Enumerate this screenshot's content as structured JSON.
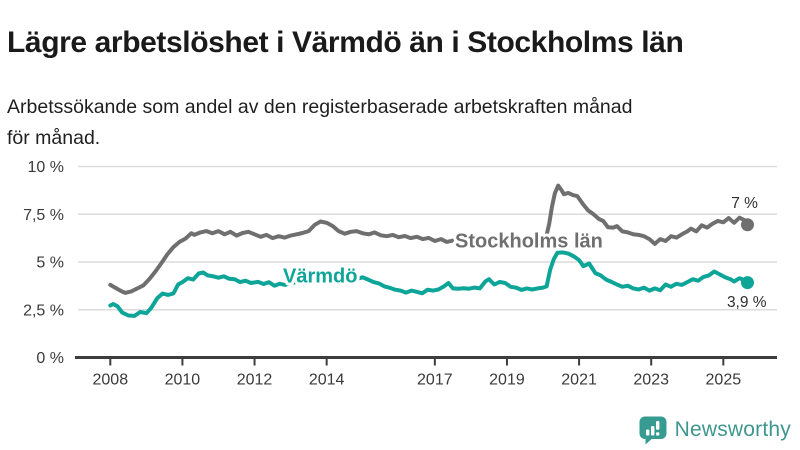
{
  "header": {
    "title": "Lägre arbetslöshet i Värmdö än i Stockholms län",
    "subtitle": "Arbetssökande som andel av den registerbaserade arbetskraften månad\nför månad."
  },
  "chart_data": {
    "type": "line",
    "title": "Lägre arbetslöshet i Värmdö än i Stockholms län",
    "xlabel": "",
    "ylabel": "",
    "x_unit": "decimal-year (monthly data)",
    "xlim": [
      2007.7,
      2026.3
    ],
    "ylim": [
      0,
      10
    ],
    "grid": "horizontal",
    "legend_position": "inline-labels-on-lines",
    "y_ticks": [
      {
        "value": 10,
        "label": "10 %"
      },
      {
        "value": 7.5,
        "label": "7,5 %"
      },
      {
        "value": 5,
        "label": "5 %"
      },
      {
        "value": 2.5,
        "label": "2,5 %"
      },
      {
        "value": 0,
        "label": "0 %"
      }
    ],
    "x_ticks": [
      {
        "value": 2008,
        "label": "2008"
      },
      {
        "value": 2010,
        "label": "2010"
      },
      {
        "value": 2012,
        "label": "2012"
      },
      {
        "value": 2014,
        "label": "2014"
      },
      {
        "value": 2017,
        "label": "2017"
      },
      {
        "value": 2019,
        "label": "2019"
      },
      {
        "value": 2021,
        "label": "2021"
      },
      {
        "value": 2023,
        "label": "2023"
      },
      {
        "value": 2025,
        "label": "2025"
      }
    ],
    "series": [
      {
        "name": "Stockholms län",
        "color": "#6f6f6f",
        "label_anchor": {
          "x": 2017.56,
          "y": 5.76
        },
        "end_dot": true,
        "end_label": {
          "text": "7 %",
          "x": 2025.96,
          "y": 7.83,
          "align": "end"
        },
        "points": [
          [
            2008.0,
            3.8
          ],
          [
            2008.17,
            3.62
          ],
          [
            2008.33,
            3.45
          ],
          [
            2008.42,
            3.38
          ],
          [
            2008.58,
            3.46
          ],
          [
            2008.75,
            3.62
          ],
          [
            2008.92,
            3.78
          ],
          [
            2009.08,
            4.1
          ],
          [
            2009.25,
            4.5
          ],
          [
            2009.42,
            4.95
          ],
          [
            2009.58,
            5.4
          ],
          [
            2009.75,
            5.78
          ],
          [
            2009.92,
            6.05
          ],
          [
            2010.08,
            6.22
          ],
          [
            2010.25,
            6.5
          ],
          [
            2010.33,
            6.42
          ],
          [
            2010.5,
            6.55
          ],
          [
            2010.67,
            6.62
          ],
          [
            2010.83,
            6.5
          ],
          [
            2011.0,
            6.62
          ],
          [
            2011.17,
            6.45
          ],
          [
            2011.33,
            6.58
          ],
          [
            2011.5,
            6.38
          ],
          [
            2011.67,
            6.52
          ],
          [
            2011.83,
            6.58
          ],
          [
            2012.0,
            6.45
          ],
          [
            2012.17,
            6.32
          ],
          [
            2012.33,
            6.42
          ],
          [
            2012.5,
            6.25
          ],
          [
            2012.67,
            6.35
          ],
          [
            2012.83,
            6.28
          ],
          [
            2013.0,
            6.38
          ],
          [
            2013.17,
            6.45
          ],
          [
            2013.33,
            6.52
          ],
          [
            2013.5,
            6.62
          ],
          [
            2013.67,
            6.95
          ],
          [
            2013.83,
            7.12
          ],
          [
            2014.0,
            7.05
          ],
          [
            2014.17,
            6.88
          ],
          [
            2014.33,
            6.62
          ],
          [
            2014.5,
            6.48
          ],
          [
            2014.67,
            6.58
          ],
          [
            2014.83,
            6.62
          ],
          [
            2015.0,
            6.5
          ],
          [
            2015.17,
            6.45
          ],
          [
            2015.33,
            6.55
          ],
          [
            2015.5,
            6.4
          ],
          [
            2015.67,
            6.35
          ],
          [
            2015.83,
            6.42
          ],
          [
            2016.0,
            6.3
          ],
          [
            2016.17,
            6.36
          ],
          [
            2016.33,
            6.25
          ],
          [
            2016.5,
            6.32
          ],
          [
            2016.67,
            6.2
          ],
          [
            2016.83,
            6.26
          ],
          [
            2017.0,
            6.1
          ],
          [
            2017.17,
            6.2
          ],
          [
            2017.33,
            6.05
          ],
          [
            2017.5,
            6.12
          ],
          [
            2017.67,
            6.0
          ],
          [
            2017.83,
            6.06
          ],
          [
            2018.0,
            5.95
          ],
          [
            2018.17,
            6.0
          ],
          [
            2018.33,
            5.92
          ],
          [
            2018.5,
            5.98
          ],
          [
            2018.67,
            5.9
          ],
          [
            2018.83,
            5.96
          ],
          [
            2019.0,
            5.92
          ],
          [
            2019.17,
            6.0
          ],
          [
            2019.33,
            5.95
          ],
          [
            2019.5,
            6.02
          ],
          [
            2019.67,
            5.98
          ],
          [
            2019.83,
            6.05
          ],
          [
            2020.0,
            6.1
          ],
          [
            2020.08,
            6.25
          ],
          [
            2020.17,
            7.0
          ],
          [
            2020.25,
            7.9
          ],
          [
            2020.33,
            8.6
          ],
          [
            2020.42,
            9.0
          ],
          [
            2020.5,
            8.8
          ],
          [
            2020.58,
            8.55
          ],
          [
            2020.7,
            8.62
          ],
          [
            2020.83,
            8.5
          ],
          [
            2020.95,
            8.45
          ],
          [
            2021.1,
            8.05
          ],
          [
            2021.25,
            7.7
          ],
          [
            2021.4,
            7.5
          ],
          [
            2021.55,
            7.25
          ],
          [
            2021.67,
            7.15
          ],
          [
            2021.8,
            6.82
          ],
          [
            2021.95,
            6.8
          ],
          [
            2022.05,
            6.88
          ],
          [
            2022.2,
            6.6
          ],
          [
            2022.35,
            6.55
          ],
          [
            2022.5,
            6.45
          ],
          [
            2022.65,
            6.42
          ],
          [
            2022.8,
            6.35
          ],
          [
            2022.95,
            6.2
          ],
          [
            2023.1,
            5.95
          ],
          [
            2023.25,
            6.2
          ],
          [
            2023.4,
            6.1
          ],
          [
            2023.55,
            6.35
          ],
          [
            2023.7,
            6.28
          ],
          [
            2023.85,
            6.45
          ],
          [
            2024.0,
            6.6
          ],
          [
            2024.1,
            6.75
          ],
          [
            2024.25,
            6.6
          ],
          [
            2024.4,
            6.92
          ],
          [
            2024.55,
            6.8
          ],
          [
            2024.7,
            7.0
          ],
          [
            2024.85,
            7.15
          ],
          [
            2025.0,
            7.08
          ],
          [
            2025.15,
            7.3
          ],
          [
            2025.3,
            7.05
          ],
          [
            2025.45,
            7.32
          ],
          [
            2025.58,
            7.2
          ],
          [
            2025.67,
            6.95
          ]
        ]
      },
      {
        "name": "Värmdö",
        "color": "#0da598",
        "label_anchor": {
          "x": 2012.79,
          "y": 3.92
        },
        "end_dot": true,
        "end_label": {
          "text": "3,9 %",
          "x": 2026.2,
          "y": 2.64,
          "align": "end"
        },
        "points": [
          [
            2008.0,
            2.72
          ],
          [
            2008.08,
            2.8
          ],
          [
            2008.2,
            2.68
          ],
          [
            2008.33,
            2.35
          ],
          [
            2008.5,
            2.2
          ],
          [
            2008.67,
            2.18
          ],
          [
            2008.83,
            2.38
          ],
          [
            2009.0,
            2.32
          ],
          [
            2009.13,
            2.58
          ],
          [
            2009.3,
            3.1
          ],
          [
            2009.45,
            3.35
          ],
          [
            2009.6,
            3.28
          ],
          [
            2009.75,
            3.35
          ],
          [
            2009.88,
            3.82
          ],
          [
            2010.0,
            3.95
          ],
          [
            2010.15,
            4.15
          ],
          [
            2010.3,
            4.08
          ],
          [
            2010.45,
            4.4
          ],
          [
            2010.58,
            4.45
          ],
          [
            2010.7,
            4.3
          ],
          [
            2010.85,
            4.25
          ],
          [
            2011.0,
            4.18
          ],
          [
            2011.15,
            4.25
          ],
          [
            2011.3,
            4.12
          ],
          [
            2011.45,
            4.1
          ],
          [
            2011.6,
            3.95
          ],
          [
            2011.75,
            4.02
          ],
          [
            2011.9,
            3.9
          ],
          [
            2012.1,
            3.96
          ],
          [
            2012.25,
            3.85
          ],
          [
            2012.4,
            3.94
          ],
          [
            2012.55,
            3.76
          ],
          [
            2012.7,
            3.86
          ],
          [
            2012.85,
            3.8
          ],
          [
            2013.0,
            3.9
          ],
          [
            2013.2,
            3.96
          ],
          [
            2013.4,
            3.88
          ],
          [
            2013.6,
            3.95
          ],
          [
            2013.8,
            4.0
          ],
          [
            2014.0,
            4.05
          ],
          [
            2014.2,
            4.12
          ],
          [
            2014.4,
            4.05
          ],
          [
            2014.6,
            4.15
          ],
          [
            2014.8,
            4.1
          ],
          [
            2015.0,
            4.2
          ],
          [
            2015.15,
            4.08
          ],
          [
            2015.3,
            3.95
          ],
          [
            2015.45,
            3.88
          ],
          [
            2015.6,
            3.72
          ],
          [
            2015.75,
            3.65
          ],
          [
            2015.9,
            3.55
          ],
          [
            2016.05,
            3.5
          ],
          [
            2016.2,
            3.4
          ],
          [
            2016.35,
            3.5
          ],
          [
            2016.5,
            3.44
          ],
          [
            2016.65,
            3.36
          ],
          [
            2016.8,
            3.55
          ],
          [
            2016.95,
            3.5
          ],
          [
            2017.1,
            3.56
          ],
          [
            2017.25,
            3.72
          ],
          [
            2017.38,
            3.9
          ],
          [
            2017.5,
            3.62
          ],
          [
            2017.65,
            3.6
          ],
          [
            2017.8,
            3.63
          ],
          [
            2017.95,
            3.6
          ],
          [
            2018.1,
            3.66
          ],
          [
            2018.25,
            3.62
          ],
          [
            2018.4,
            3.98
          ],
          [
            2018.5,
            4.1
          ],
          [
            2018.65,
            3.82
          ],
          [
            2018.8,
            3.96
          ],
          [
            2018.95,
            3.9
          ],
          [
            2019.1,
            3.7
          ],
          [
            2019.25,
            3.66
          ],
          [
            2019.4,
            3.54
          ],
          [
            2019.55,
            3.62
          ],
          [
            2019.7,
            3.56
          ],
          [
            2019.85,
            3.62
          ],
          [
            2020.0,
            3.66
          ],
          [
            2020.1,
            3.72
          ],
          [
            2020.2,
            4.6
          ],
          [
            2020.3,
            5.15
          ],
          [
            2020.4,
            5.48
          ],
          [
            2020.55,
            5.5
          ],
          [
            2020.7,
            5.44
          ],
          [
            2020.85,
            5.3
          ],
          [
            2021.0,
            5.1
          ],
          [
            2021.12,
            4.78
          ],
          [
            2021.28,
            4.92
          ],
          [
            2021.45,
            4.42
          ],
          [
            2021.6,
            4.3
          ],
          [
            2021.75,
            4.08
          ],
          [
            2021.9,
            3.96
          ],
          [
            2022.05,
            3.82
          ],
          [
            2022.2,
            3.7
          ],
          [
            2022.35,
            3.76
          ],
          [
            2022.5,
            3.62
          ],
          [
            2022.65,
            3.56
          ],
          [
            2022.8,
            3.66
          ],
          [
            2022.95,
            3.5
          ],
          [
            2023.1,
            3.62
          ],
          [
            2023.25,
            3.52
          ],
          [
            2023.4,
            3.82
          ],
          [
            2023.55,
            3.7
          ],
          [
            2023.7,
            3.86
          ],
          [
            2023.85,
            3.8
          ],
          [
            2024.0,
            3.95
          ],
          [
            2024.15,
            4.1
          ],
          [
            2024.3,
            4.02
          ],
          [
            2024.45,
            4.22
          ],
          [
            2024.6,
            4.3
          ],
          [
            2024.75,
            4.5
          ],
          [
            2024.9,
            4.35
          ],
          [
            2025.05,
            4.2
          ],
          [
            2025.2,
            4.1
          ],
          [
            2025.3,
            3.98
          ],
          [
            2025.45,
            4.15
          ],
          [
            2025.58,
            4.05
          ],
          [
            2025.67,
            3.92
          ]
        ]
      }
    ],
    "style": {
      "gridline_color": "#dcdcdc",
      "axis_line_color": "#3d3d3d",
      "tick_label_color": "#3a3a3a",
      "annotation_color": "#2e2e2e"
    }
  },
  "footer": {
    "logo_text": "Newsworthy",
    "logo_color": "#3f968f",
    "logo_icon_color": "#389b92"
  }
}
